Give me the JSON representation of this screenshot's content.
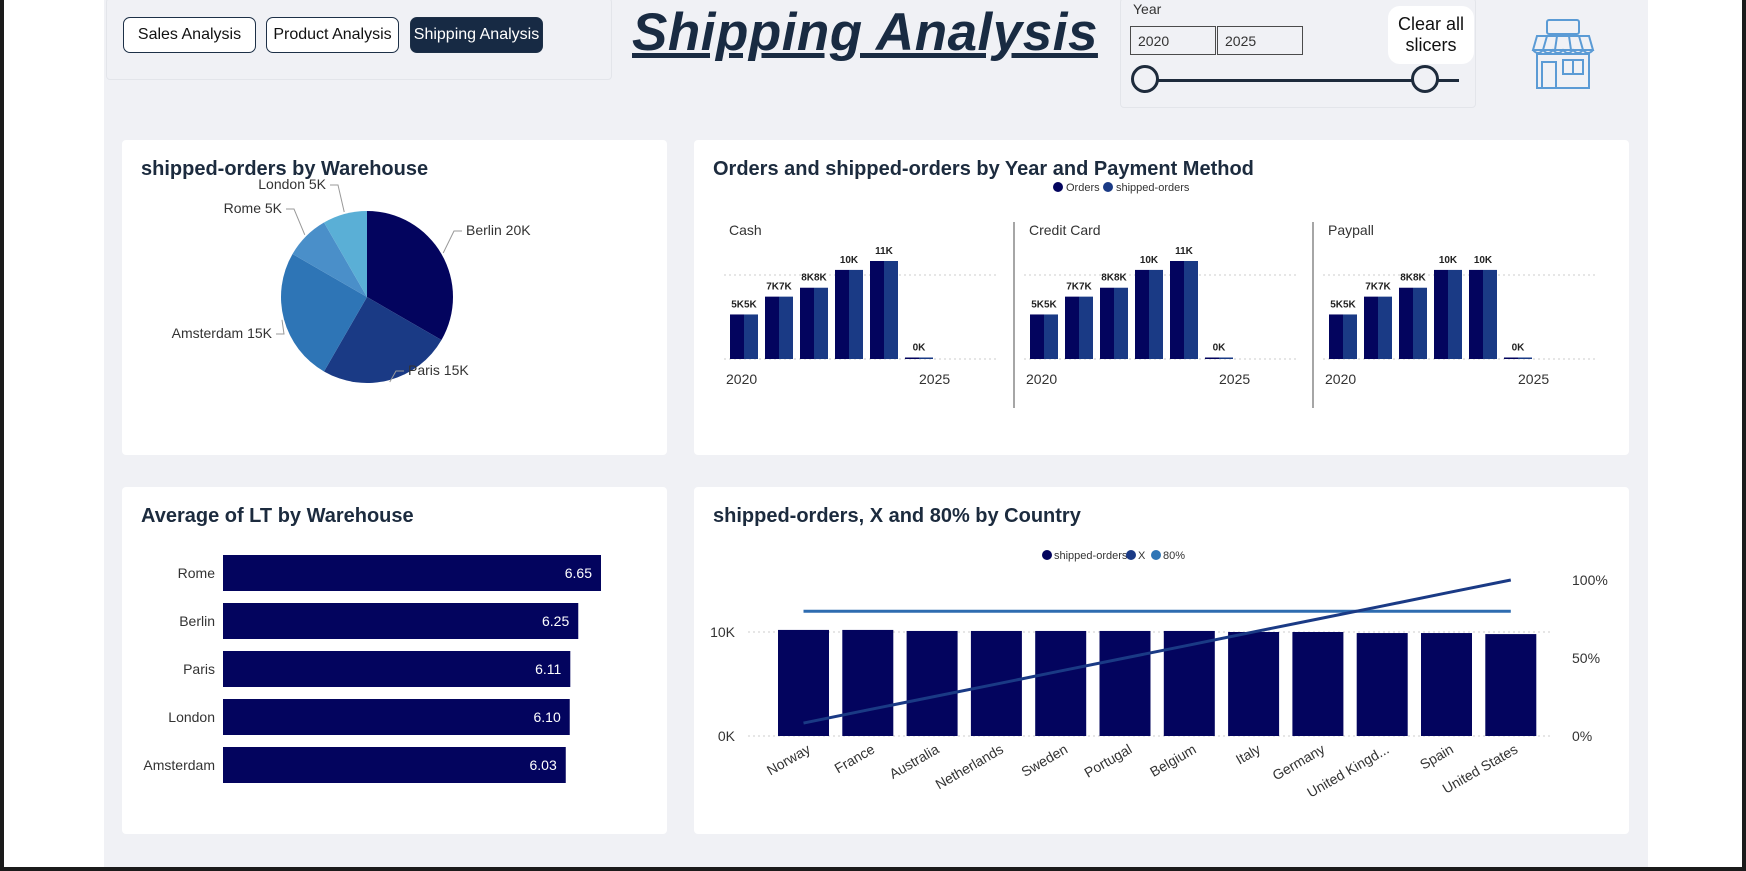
{
  "nav": {
    "sales_label": "Sales Analysis",
    "product_label": "Product Analysis",
    "shipping_label": "Shipping Analysis"
  },
  "page_title": "Shipping Analysis",
  "year_slicer": {
    "label": "Year",
    "from": "2020",
    "to": "2025"
  },
  "clear_label": "Clear all slicers",
  "icons": {
    "store": "store-icon"
  },
  "colors": {
    "navy": "#03045e",
    "blue": "#1a3a85",
    "mid_blue": "#2e75b6",
    "light_blue": "#4a8fc9",
    "sky_blue": "#5aafd6",
    "line_blue": "#2e6cb0"
  },
  "cards": {
    "pie_title": "shipped-orders by Warehouse",
    "cluster_title": "Orders and shipped-orders by Year and Payment Method",
    "lt_title": "Average of LT by Warehouse",
    "country_title": "shipped-orders, X and 80% by Country"
  },
  "chart_data": [
    {
      "type": "pie",
      "title": "shipped-orders by Warehouse",
      "slices": [
        {
          "label": "Berlin",
          "value": 20,
          "label_text": "Berlin 20K"
        },
        {
          "label": "Paris",
          "value": 15,
          "label_text": "Paris 15K"
        },
        {
          "label": "Amsterdam",
          "value": 15,
          "label_text": "Amsterdam 15K"
        },
        {
          "label": "Rome",
          "value": 5,
          "label_text": "Rome 5K"
        },
        {
          "label": "London",
          "value": 5,
          "label_text": "London 5K"
        }
      ]
    },
    {
      "type": "bar",
      "title": "Orders and shipped-orders by Year and Payment Method",
      "legend": [
        "Orders",
        "shipped-orders"
      ],
      "x_labels": [
        "2020",
        "2025"
      ],
      "panels": [
        {
          "name": "Cash",
          "categories": [
            2020,
            2021,
            2022,
            2023,
            2024,
            2025
          ],
          "series": [
            {
              "name": "Orders",
              "values": [
                5,
                7,
                8,
                10,
                11,
                0
              ]
            },
            {
              "name": "shipped-orders",
              "values": [
                5,
                7,
                8,
                10,
                11,
                0
              ]
            }
          ],
          "labels": [
            "5K5K",
            "7K7K",
            "8K8K",
            "10K",
            "11K",
            "0K"
          ]
        },
        {
          "name": "Credit Card",
          "categories": [
            2020,
            2021,
            2022,
            2023,
            2024,
            2025
          ],
          "series": [
            {
              "name": "Orders",
              "values": [
                5,
                7,
                8,
                10,
                11,
                0
              ]
            },
            {
              "name": "shipped-orders",
              "values": [
                5,
                7,
                8,
                10,
                11,
                0
              ]
            }
          ],
          "labels": [
            "5K5K",
            "7K7K",
            "8K8K",
            "10K",
            "11K",
            "0K"
          ]
        },
        {
          "name": "Paypall",
          "categories": [
            2020,
            2021,
            2022,
            2023,
            2024,
            2025
          ],
          "series": [
            {
              "name": "Orders",
              "values": [
                5,
                7,
                8,
                10,
                10,
                0
              ]
            },
            {
              "name": "shipped-orders",
              "values": [
                5,
                7,
                8,
                10,
                10,
                0
              ]
            }
          ],
          "labels": [
            "5K5K",
            "7K7K",
            "8K8K",
            "10K",
            "10K",
            "0K"
          ]
        }
      ]
    },
    {
      "type": "bar",
      "orientation": "horizontal",
      "title": "Average of LT by Warehouse",
      "categories": [
        "Rome",
        "Berlin",
        "Paris",
        "London",
        "Amsterdam"
      ],
      "values": [
        6.65,
        6.25,
        6.11,
        6.1,
        6.03
      ],
      "labels": [
        "6.65",
        "6.25",
        "6.11",
        "6.10",
        "6.03"
      ]
    },
    {
      "type": "bar",
      "title": "shipped-orders, X and 80% by Country",
      "legend": [
        "shipped-orders",
        "X",
        "80%"
      ],
      "categories": [
        "Norway",
        "France",
        "Australia",
        "Netherlands",
        "Sweden",
        "Portugal",
        "Belgium",
        "Italy",
        "Germany",
        "United Kingd...",
        "Spain",
        "United States"
      ],
      "series": [
        {
          "name": "shipped-orders",
          "type": "bar",
          "axis": "left",
          "values": [
            10.2,
            10.2,
            10.1,
            10.1,
            10.1,
            10.1,
            10.1,
            10.0,
            10.0,
            9.9,
            9.9,
            9.8
          ]
        },
        {
          "name": "X",
          "type": "line",
          "axis": "right",
          "values": [
            8.3,
            16.7,
            25.0,
            33.3,
            41.7,
            50.0,
            58.3,
            66.7,
            75.0,
            83.3,
            91.7,
            100.0
          ]
        },
        {
          "name": "80%",
          "type": "line",
          "axis": "right",
          "values": [
            80,
            80,
            80,
            80,
            80,
            80,
            80,
            80,
            80,
            80,
            80,
            80
          ]
        }
      ],
      "y_ticks": [
        "10K",
        "0K"
      ],
      "y2_ticks": [
        "100%",
        "50%",
        "0%"
      ]
    }
  ]
}
